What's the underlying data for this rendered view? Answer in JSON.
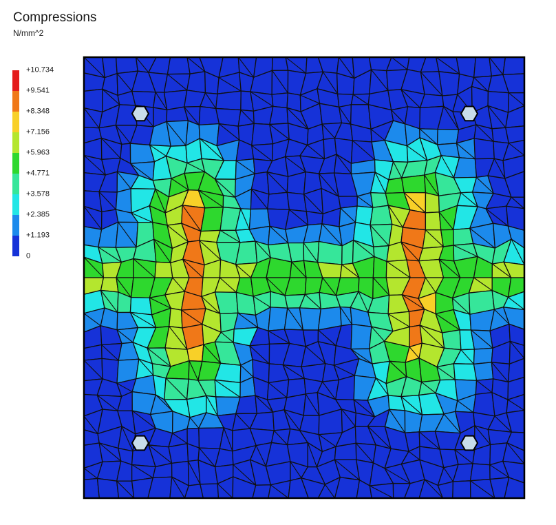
{
  "chart_data": {
    "type": "heatmap",
    "title": "Compressions",
    "unit": "N/mm^2",
    "legend": {
      "labels": [
        "+10.734",
        "+9.541",
        "+8.348",
        "+7.156",
        "+5.963",
        "+4.771",
        "+3.578",
        "+2.385",
        "+1.193",
        "0"
      ],
      "colors": [
        "#e41c1c",
        "#f07818",
        "#f8d028",
        "#b4e62e",
        "#2ed82e",
        "#36e69a",
        "#22e6e6",
        "#1c8aec",
        "#1632d8"
      ],
      "min": 0,
      "max": 10.734
    },
    "peaks": [
      {
        "x": 0.24,
        "y": 0.5,
        "value": 10.734
      },
      {
        "x": 0.76,
        "y": 0.5,
        "value": 10.734
      }
    ],
    "supports": 4,
    "colors": {
      "mesh": "#101010",
      "support_fill": "#c8dcea"
    }
  }
}
